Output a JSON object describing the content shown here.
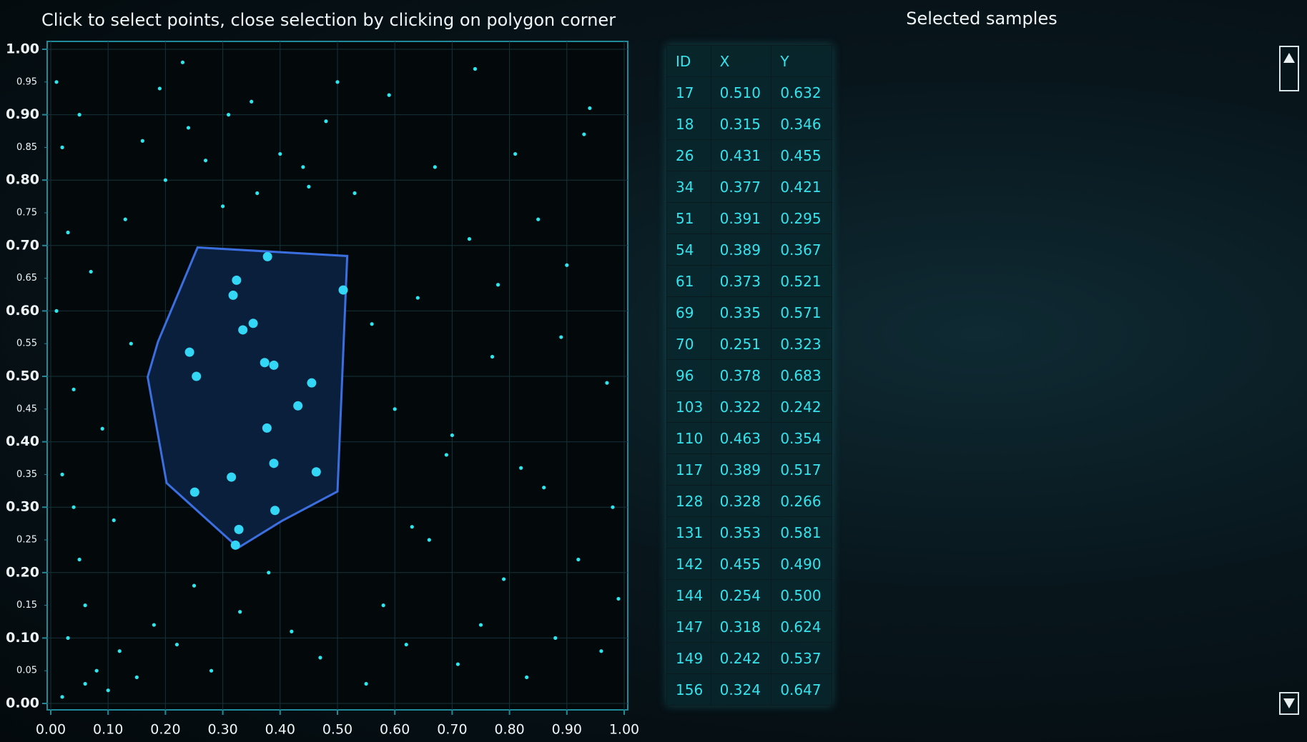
{
  "header": {
    "title": "Click to select points, close selection by clicking on polygon corner"
  },
  "chart_data": {
    "type": "scatter",
    "xlim": [
      0,
      1
    ],
    "ylim": [
      0,
      1
    ],
    "xticks": [
      {
        "value": 0,
        "label": "0.00"
      },
      {
        "value": 0.1,
        "label": "0.10"
      },
      {
        "value": 0.2,
        "label": "0.20"
      },
      {
        "value": 0.3,
        "label": "0.30"
      },
      {
        "value": 0.4,
        "label": "0.40"
      },
      {
        "value": 0.5,
        "label": "0.50"
      },
      {
        "value": 0.6,
        "label": "0.60"
      },
      {
        "value": 0.7,
        "label": "0.70"
      },
      {
        "value": 0.8,
        "label": "0.80"
      },
      {
        "value": 0.9,
        "label": "0.90"
      },
      {
        "value": 1,
        "label": "1.00"
      }
    ],
    "yticks": [
      {
        "value": 0,
        "label": "0.00"
      },
      {
        "value": 0.1,
        "label": "0.10"
      },
      {
        "value": 0.2,
        "label": "0.20"
      },
      {
        "value": 0.3,
        "label": "0.30"
      },
      {
        "value": 0.4,
        "label": "0.40"
      },
      {
        "value": 0.5,
        "label": "0.50"
      },
      {
        "value": 0.6,
        "label": "0.60"
      },
      {
        "value": 0.7,
        "label": "0.70"
      },
      {
        "value": 0.8,
        "label": "0.80"
      },
      {
        "value": 0.9,
        "label": "0.90"
      },
      {
        "value": 1,
        "label": "1.00"
      }
    ],
    "yticks_minor": [
      {
        "value": 0.05,
        "label": "0.05"
      },
      {
        "value": 0.15,
        "label": "0.15"
      },
      {
        "value": 0.25,
        "label": "0.25"
      },
      {
        "value": 0.35,
        "label": "0.35"
      },
      {
        "value": 0.45,
        "label": "0.45"
      },
      {
        "value": 0.55,
        "label": "0.55"
      },
      {
        "value": 0.65,
        "label": "0.65"
      },
      {
        "value": 0.75,
        "label": "0.75"
      },
      {
        "value": 0.85,
        "label": "0.85"
      },
      {
        "value": 0.95,
        "label": "0.95"
      }
    ],
    "grid": true,
    "series": [
      {
        "color": "#2de6ee",
        "x": [
          0.01,
          0.02,
          0.03,
          0.01,
          0.04,
          0.02,
          0.05,
          0.03,
          0.06,
          0.02,
          0.08,
          0.1,
          0.12,
          0.05,
          0.07,
          0.15,
          0.18,
          0.22,
          0.09,
          0.11,
          0.14,
          0.25,
          0.28,
          0.33,
          0.38,
          0.42,
          0.47,
          0.55,
          0.58,
          0.62,
          0.66,
          0.71,
          0.75,
          0.79,
          0.83,
          0.88,
          0.92,
          0.96,
          0.99,
          0.6,
          0.64,
          0.69,
          0.73,
          0.77,
          0.81,
          0.86,
          0.9,
          0.94,
          0.97,
          0.53,
          0.56,
          0.59,
          0.63,
          0.67,
          0.7,
          0.74,
          0.78,
          0.82,
          0.85,
          0.89,
          0.93,
          0.98,
          0.2,
          0.24,
          0.3,
          0.35,
          0.4,
          0.45,
          0.5,
          0.13,
          0.16,
          0.19,
          0.23,
          0.27,
          0.31,
          0.36,
          0.44,
          0.48,
          0.04,
          0.06
        ],
        "values": [
          0.95,
          0.85,
          0.72,
          0.6,
          0.48,
          0.35,
          0.22,
          0.1,
          0.03,
          0.01,
          0.05,
          0.02,
          0.08,
          0.9,
          0.66,
          0.04,
          0.12,
          0.09,
          0.42,
          0.28,
          0.55,
          0.18,
          0.05,
          0.14,
          0.2,
          0.11,
          0.07,
          0.03,
          0.15,
          0.09,
          0.25,
          0.06,
          0.12,
          0.19,
          0.04,
          0.1,
          0.22,
          0.08,
          0.16,
          0.45,
          0.62,
          0.38,
          0.71,
          0.53,
          0.84,
          0.33,
          0.67,
          0.91,
          0.49,
          0.78,
          0.58,
          0.93,
          0.27,
          0.82,
          0.41,
          0.97,
          0.64,
          0.36,
          0.74,
          0.56,
          0.87,
          0.3,
          0.8,
          0.88,
          0.76,
          0.92,
          0.84,
          0.79,
          0.95,
          0.74,
          0.86,
          0.94,
          0.98,
          0.83,
          0.9,
          0.78,
          0.82,
          0.89,
          0.3,
          0.15
        ]
      },
      {
        "color": "#33d6f5",
        "x": [
          0.51,
          0.315,
          0.431,
          0.377,
          0.391,
          0.389,
          0.373,
          0.335,
          0.251,
          0.378,
          0.322,
          0.463,
          0.389,
          0.328,
          0.353,
          0.455,
          0.254,
          0.318,
          0.242,
          0.324
        ],
        "values": [
          0.632,
          0.346,
          0.455,
          0.421,
          0.295,
          0.367,
          0.521,
          0.571,
          0.323,
          0.683,
          0.242,
          0.354,
          0.517,
          0.266,
          0.581,
          0.49,
          0.5,
          0.624,
          0.537,
          0.647
        ]
      }
    ],
    "selection_polygon": {
      "color": "#3b6fe0",
      "x": [
        0.256,
        0.517,
        0.5,
        0.403,
        0.327,
        0.202,
        0.169,
        0.187
      ],
      "y": [
        0.697,
        0.684,
        0.324,
        0.279,
        0.238,
        0.337,
        0.499,
        0.553
      ]
    }
  },
  "panel": {
    "title": "Selected samples",
    "columns": [
      "ID",
      "X",
      "Y"
    ],
    "rows": [
      [
        "17",
        "0.510",
        "0.632"
      ],
      [
        "18",
        "0.315",
        "0.346"
      ],
      [
        "26",
        "0.431",
        "0.455"
      ],
      [
        "34",
        "0.377",
        "0.421"
      ],
      [
        "51",
        "0.391",
        "0.295"
      ],
      [
        "54",
        "0.389",
        "0.367"
      ],
      [
        "61",
        "0.373",
        "0.521"
      ],
      [
        "69",
        "0.335",
        "0.571"
      ],
      [
        "70",
        "0.251",
        "0.323"
      ],
      [
        "96",
        "0.378",
        "0.683"
      ],
      [
        "103",
        "0.322",
        "0.242"
      ],
      [
        "110",
        "0.463",
        "0.354"
      ],
      [
        "117",
        "0.389",
        "0.517"
      ],
      [
        "128",
        "0.328",
        "0.266"
      ],
      [
        "131",
        "0.353",
        "0.581"
      ],
      [
        "142",
        "0.455",
        "0.490"
      ],
      [
        "144",
        "0.254",
        "0.500"
      ],
      [
        "147",
        "0.318",
        "0.624"
      ],
      [
        "149",
        "0.242",
        "0.537"
      ],
      [
        "156",
        "0.324",
        "0.647"
      ]
    ]
  }
}
